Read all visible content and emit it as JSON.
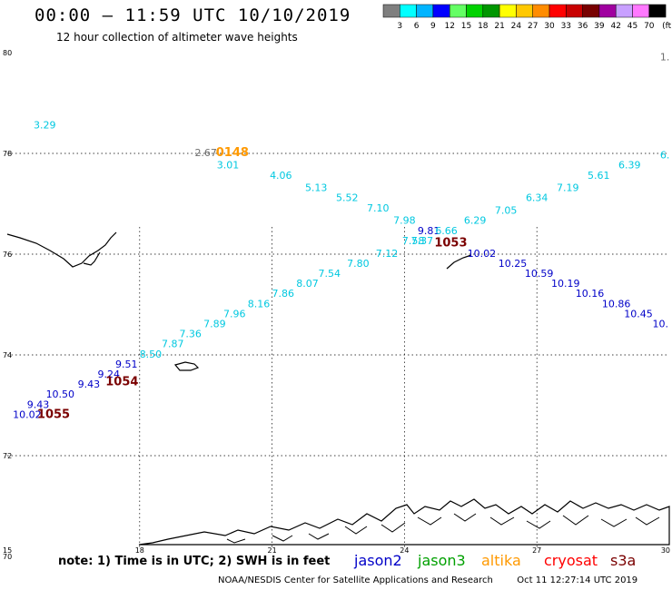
{
  "header": {
    "title": "00:00 – 11:59 UTC 10/10/2019",
    "subtitle": "12 hour collection of altimeter wave heights"
  },
  "legend": {
    "unit": "(ft)",
    "bins": [
      {
        "label": "3",
        "color": "#7f7f7f"
      },
      {
        "label": "6",
        "color": "#00ffff"
      },
      {
        "label": "9",
        "color": "#00b4ff"
      },
      {
        "label": "12",
        "color": "#0000ff"
      },
      {
        "label": "15",
        "color": "#64ff64"
      },
      {
        "label": "18",
        "color": "#00d200"
      },
      {
        "label": "21",
        "color": "#009600"
      },
      {
        "label": "24",
        "color": "#ffff00"
      },
      {
        "label": "27",
        "color": "#ffc800"
      },
      {
        "label": "30",
        "color": "#ff8c00"
      },
      {
        "label": "33",
        "color": "#ff0000"
      },
      {
        "label": "36",
        "color": "#c80000"
      },
      {
        "label": "39",
        "color": "#780000"
      },
      {
        "label": "42",
        "color": "#a000a0"
      },
      {
        "label": "45",
        "color": "#c8a0ff"
      },
      {
        "label": "70",
        "color": "#ff78ff"
      },
      {
        "label": "",
        "color": "#000000"
      }
    ]
  },
  "axes": {
    "lat_labels": [
      "80",
      "78",
      "76",
      "74",
      "72",
      "70"
    ],
    "lon_labels": [
      "15",
      "18",
      "21",
      "24",
      "27",
      "30"
    ]
  },
  "colors": {
    "cyan": "#00c8e0",
    "blue": "#0000c8",
    "gray": "#6e6e6e",
    "orange": "#ff9900",
    "darkred": "#7a0000",
    "green": "#00a000",
    "red": "#ff0000"
  },
  "observations": [
    {
      "text": "3.29",
      "lon": 15.85,
      "lat": 78.5,
      "color": "cyan"
    },
    {
      "text": "2.67",
      "lon": 19.5,
      "lat": 77.95,
      "color": "gray"
    },
    {
      "text": "0148",
      "lon": 20.1,
      "lat": 77.95,
      "color": "orange",
      "bold": true
    },
    {
      "text": "3.01",
      "lon": 20.0,
      "lat": 77.7,
      "color": "cyan"
    },
    {
      "text": "4.06",
      "lon": 21.2,
      "lat": 77.5,
      "color": "cyan"
    },
    {
      "text": "5.13",
      "lon": 22.0,
      "lat": 77.25,
      "color": "cyan"
    },
    {
      "text": "5.52",
      "lon": 22.7,
      "lat": 77.05,
      "color": "cyan"
    },
    {
      "text": "7.10",
      "lon": 23.4,
      "lat": 76.85,
      "color": "cyan"
    },
    {
      "text": "7.98",
      "lon": 24.0,
      "lat": 76.6,
      "color": "cyan"
    },
    {
      "text": "9.81",
      "lon": 24.55,
      "lat": 76.4,
      "color": "blue"
    },
    {
      "text": "6.66",
      "lon": 24.95,
      "lat": 76.4,
      "color": "cyan"
    },
    {
      "text": "7.58",
      "lon": 24.2,
      "lat": 76.2,
      "color": "cyan"
    },
    {
      "text": "7.37",
      "lon": 24.4,
      "lat": 76.2,
      "color": "cyan"
    },
    {
      "text": "1053",
      "lon": 25.05,
      "lat": 76.15,
      "color": "darkred",
      "bold": true
    },
    {
      "text": "6.29",
      "lon": 25.6,
      "lat": 76.6,
      "color": "cyan"
    },
    {
      "text": "7.05",
      "lon": 26.3,
      "lat": 76.8,
      "color": "cyan"
    },
    {
      "text": "6.34",
      "lon": 27.0,
      "lat": 77.05,
      "color": "cyan"
    },
    {
      "text": "7.19",
      "lon": 27.7,
      "lat": 77.25,
      "color": "cyan"
    },
    {
      "text": "5.61",
      "lon": 28.4,
      "lat": 77.5,
      "color": "cyan"
    },
    {
      "text": "6.39",
      "lon": 29.1,
      "lat": 77.7,
      "color": "cyan"
    },
    {
      "text": "6.",
      "lon": 29.9,
      "lat": 77.9,
      "color": "cyan"
    },
    {
      "text": "1.",
      "lon": 29.9,
      "lat": 79.85,
      "color": "gray"
    },
    {
      "text": "10.02",
      "lon": 25.75,
      "lat": 75.95,
      "color": "blue"
    },
    {
      "text": "10.25",
      "lon": 26.45,
      "lat": 75.75,
      "color": "blue"
    },
    {
      "text": "10.59",
      "lon": 27.05,
      "lat": 75.55,
      "color": "blue"
    },
    {
      "text": "10.19",
      "lon": 27.65,
      "lat": 75.35,
      "color": "blue"
    },
    {
      "text": "10.16",
      "lon": 28.2,
      "lat": 75.15,
      "color": "blue"
    },
    {
      "text": "10.86",
      "lon": 28.8,
      "lat": 74.95,
      "color": "blue"
    },
    {
      "text": "10.45",
      "lon": 29.3,
      "lat": 74.75,
      "color": "blue"
    },
    {
      "text": "10.",
      "lon": 29.8,
      "lat": 74.55,
      "color": "blue"
    },
    {
      "text": "7.12",
      "lon": 23.6,
      "lat": 75.95,
      "color": "cyan"
    },
    {
      "text": "7.80",
      "lon": 22.95,
      "lat": 75.75,
      "color": "cyan"
    },
    {
      "text": "7.54",
      "lon": 22.3,
      "lat": 75.55,
      "color": "cyan"
    },
    {
      "text": "8.07",
      "lon": 21.8,
      "lat": 75.35,
      "color": "cyan"
    },
    {
      "text": "7.86",
      "lon": 21.25,
      "lat": 75.15,
      "color": "cyan"
    },
    {
      "text": "8.16",
      "lon": 20.7,
      "lat": 74.95,
      "color": "cyan"
    },
    {
      "text": "7.96",
      "lon": 20.15,
      "lat": 74.75,
      "color": "cyan"
    },
    {
      "text": "7.89",
      "lon": 19.7,
      "lat": 74.55,
      "color": "cyan"
    },
    {
      "text": "7.36",
      "lon": 19.15,
      "lat": 74.35,
      "color": "cyan"
    },
    {
      "text": "7.87",
      "lon": 18.75,
      "lat": 74.15,
      "color": "cyan"
    },
    {
      "text": "8.50",
      "lon": 18.25,
      "lat": 73.95,
      "color": "cyan"
    },
    {
      "text": "9.51",
      "lon": 17.7,
      "lat": 73.75,
      "color": "blue"
    },
    {
      "text": "9.24",
      "lon": 17.3,
      "lat": 73.55,
      "color": "blue"
    },
    {
      "text": "1054",
      "lon": 17.6,
      "lat": 73.4,
      "color": "darkred",
      "bold": true
    },
    {
      "text": "9.43",
      "lon": 16.85,
      "lat": 73.35,
      "color": "blue"
    },
    {
      "text": "10.50",
      "lon": 16.2,
      "lat": 73.15,
      "color": "blue"
    },
    {
      "text": "9.43",
      "lon": 15.7,
      "lat": 72.95,
      "color": "blue"
    },
    {
      "text": "10.02",
      "lon": 15.45,
      "lat": 72.75,
      "color": "blue"
    },
    {
      "text": "1055",
      "lon": 16.05,
      "lat": 72.75,
      "color": "darkred",
      "bold": true
    }
  ],
  "footer": {
    "note": "note: 1) Time is in UTC; 2) SWH is in feet",
    "satellites": [
      {
        "name": "jason2",
        "color": "blue"
      },
      {
        "name": "jason3",
        "color": "green"
      },
      {
        "name": "altika",
        "color": "orange"
      },
      {
        "name": "cryosat",
        "color": "red"
      },
      {
        "name": "s3a",
        "color": "darkred"
      }
    ],
    "credit": "NOAA/NESDIS Center for Satellite Applications and Research",
    "generated": "Oct 11 12:27:14 UTC 2019"
  }
}
